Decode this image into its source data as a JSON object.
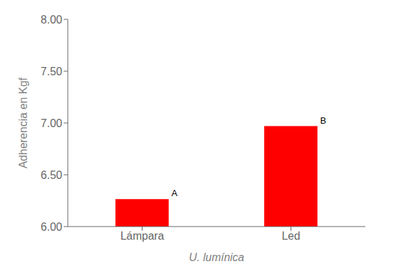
{
  "chart_data": {
    "type": "bar",
    "categories": [
      "Lámpara",
      "Led"
    ],
    "values": [
      6.265,
      6.97
    ],
    "color": "#ff0000",
    "ylim": [
      6.0,
      8.0
    ],
    "yticks": [
      {
        "value": 6.0,
        "label": "6.00"
      },
      {
        "value": 6.5,
        "label": "6.50"
      },
      {
        "value": 7.0,
        "label": "7.00"
      },
      {
        "value": 7.5,
        "label": "7.50"
      },
      {
        "value": 8.0,
        "label": "8.00"
      }
    ],
    "xlabel": "U. lumínica",
    "ylabel": "Adherencia en Kgf",
    "annotations": [
      "A",
      "B"
    ],
    "grid": false
  }
}
